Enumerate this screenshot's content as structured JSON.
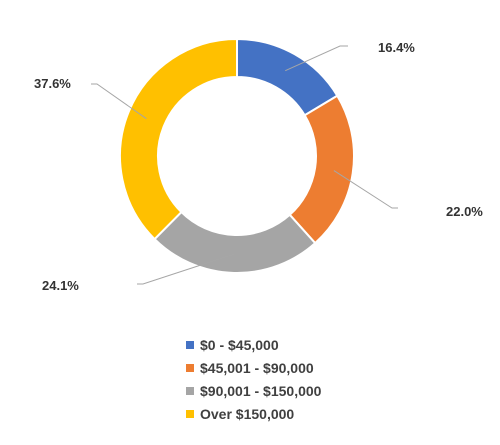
{
  "chart_data": {
    "type": "pie",
    "donut": true,
    "legend_position": "bottom",
    "categories": [
      "$0 - $45,000",
      "$45,001 - $90,000",
      "$90,001 - $150,000",
      "Over $150,000"
    ],
    "values": [
      16.4,
      22.0,
      24.1,
      37.6
    ],
    "data_labels": [
      "16.4%",
      "22.0%",
      "24.1%",
      "37.6%"
    ],
    "colors": [
      "#4472C4",
      "#ED7D31",
      "#A5A5A5",
      "#FFC000"
    ]
  }
}
